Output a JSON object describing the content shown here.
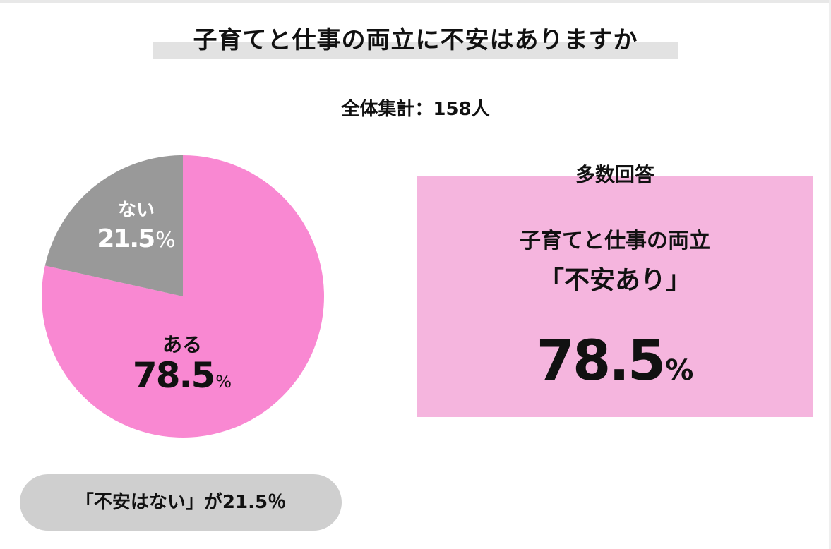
{
  "chart_data": {
    "type": "pie",
    "title": "子育てと仕事の両立に不安はありますか",
    "subtitle": "全体集計：158人",
    "categories": [
      "ある",
      "ない"
    ],
    "values": [
      78.5,
      21.5
    ],
    "value_labels": [
      "78.5",
      "21.5"
    ],
    "unit": "%",
    "colors": [
      "#f988d2",
      "#999999"
    ],
    "start_angle_deg": 0,
    "direction": "clockwise",
    "legend": "none"
  },
  "summary": {
    "caption": "多数回答",
    "line1": "子育てと仕事の両立",
    "line2": "「不安あり」",
    "value": "78.5",
    "unit": "%",
    "box_color": "#f5b5de"
  },
  "note": {
    "text": "「不安はない」が21.5％",
    "pill_color": "#cfcfcf"
  }
}
